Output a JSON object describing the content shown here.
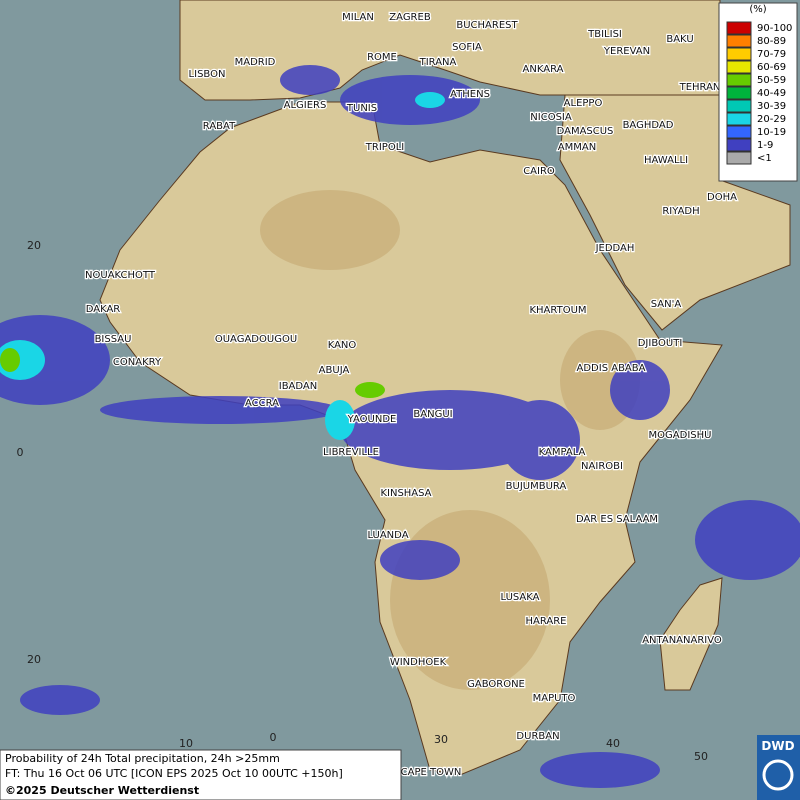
{
  "cities": [
    "MILAN",
    "ZAGREB",
    "BUCHAREST",
    "SOFIA",
    "TBILISI",
    "BAKU",
    "YEREVAN",
    "LISBON",
    "MADRID",
    "ROME",
    "TIRANA",
    "ANKARA",
    "TEHRAN",
    "ALGIERS",
    "TUNIS",
    "ATHENS",
    "ALEPPO",
    "RABAT",
    "NICOSIA",
    "BAGHDAD",
    "DAMASCUS",
    "TRIPOLI",
    "AMMAN",
    "HAWALLI",
    "CAIRO",
    "DOHA",
    "RIYADH",
    "JEDDAH",
    "NOUAKCHOTT",
    "DAKAR",
    "KHARTOUM",
    "SAN'A",
    "BISSAU",
    "OUAGADOUGOU",
    "DJIBOUTI",
    "KANO",
    "CONAKRY",
    "ABUJA",
    "ADDIS ABABA",
    "IBADAN",
    "ACCRA",
    "YAOUNDE",
    "BANGUI",
    "MOGADISHU",
    "LIBREVILLE",
    "KAMPALA",
    "NAIROBI",
    "KINSHASA",
    "BUJUMBURA",
    "DAR ES SALAAM",
    "LUANDA",
    "LUSAKA",
    "HARARE",
    "ANTANANARIVO",
    "WINDHOEK",
    "GABORONE",
    "MAPUTO",
    "DURBAN",
    "CAPE TOWN"
  ],
  "grid_labels": [
    "20",
    "0",
    "20",
    "10",
    "0",
    "30",
    "40",
    "50"
  ],
  "legend": {
    "title": "(%)",
    "items": [
      {
        "label": "90-100",
        "color": "#cc0000"
      },
      {
        "label": "80-89",
        "color": "#ff7f00"
      },
      {
        "label": "70-79",
        "color": "#ffcc00"
      },
      {
        "label": "60-69",
        "color": "#e6e600"
      },
      {
        "label": "50-59",
        "color": "#66cc00"
      },
      {
        "label": "40-49",
        "color": "#00b33c"
      },
      {
        "label": "30-39",
        "color": "#00c8b4"
      },
      {
        "label": "20-29",
        "color": "#1ad6e6"
      },
      {
        "label": "10-19",
        "color": "#3366ff"
      },
      {
        "label": "1-9",
        "color": "#4040c0"
      },
      {
        "label": "<1",
        "color": "#aaaaaa"
      }
    ]
  },
  "caption": {
    "line1": "Probability of 24h Total precipitation, 24h >25mm",
    "line2": "FT: Thu 16 Oct 06 UTC [ICON EPS 2025 Oct 10 00UTC +150h]",
    "line3": "©2025 Deutscher Wetterdienst"
  },
  "logo": "DWD"
}
